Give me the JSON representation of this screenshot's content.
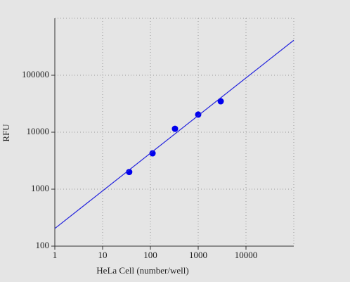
{
  "chart_data": {
    "type": "scatter",
    "x_label": "HeLa Cell (number/well)",
    "y_label": "RFU",
    "xlog": true,
    "ylog": true,
    "grid": true,
    "xlim": [
      1,
      100000
    ],
    "ylim": [
      100,
      1000000
    ],
    "xticks": [
      1,
      10,
      100,
      1000,
      10000
    ],
    "yticks": [
      100,
      1000,
      10000,
      100000
    ],
    "series": [
      {
        "style": "marker",
        "color": "#0000ee",
        "x": [
          36,
          111,
          327,
          1000,
          2960
        ],
        "values": [
          2000,
          4260,
          11500,
          20400,
          34900
        ]
      },
      {
        "style": "line",
        "color": "#2222dd",
        "x": [
          1,
          100000
        ],
        "values": [
          204,
          411000
        ]
      }
    ]
  }
}
